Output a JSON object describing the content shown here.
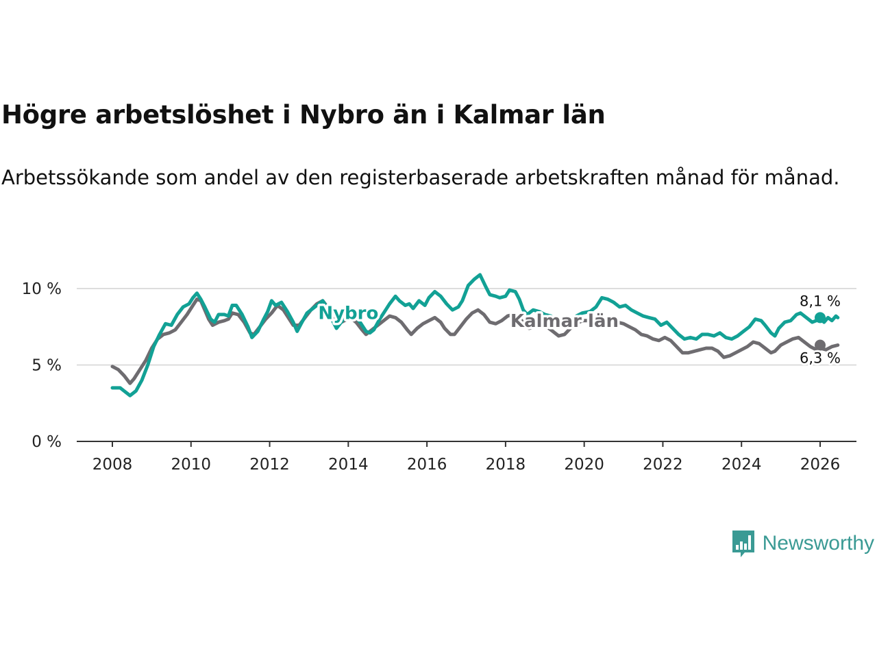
{
  "header": {
    "title": "Högre arbetslöshet i Nybro än i Kalmar län",
    "subtitle": "Arbetssökande som andel av den registerbaserade arbetskraften månad för månad."
  },
  "colors": {
    "nybro": "#12a195",
    "kalmar": "#6e6c70",
    "grid": "#dddddd",
    "axis": "#333333"
  },
  "brand": {
    "name": "Newsworthy",
    "icon": "bar-chart-speech-bubble-icon"
  },
  "chart_data": {
    "type": "line",
    "title": "Högre arbetslöshet i Nybro än i Kalmar län",
    "xlabel": "",
    "ylabel": "",
    "xlim": [
      2008,
      2026
    ],
    "ylim": [
      0,
      10
    ],
    "x_ticks": [
      2008,
      2010,
      2012,
      2014,
      2016,
      2018,
      2020,
      2022,
      2024,
      2026
    ],
    "x_tick_labels": [
      "2008",
      "2010",
      "2012",
      "2014",
      "2016",
      "2018",
      "2020",
      "2022",
      "2024",
      "2026"
    ],
    "y_ticks": [
      0,
      5,
      10
    ],
    "y_tick_labels": [
      "0 %",
      "5 %",
      "10 %"
    ],
    "grid": true,
    "series": [
      {
        "name": "Nybro",
        "color": "#12a195",
        "end_label": "8,1 %",
        "label_at": [
          2014.0,
          8.4
        ],
        "points": [
          [
            2008.0,
            3.5
          ],
          [
            2008.2,
            3.5
          ],
          [
            2008.3,
            3.3
          ],
          [
            2008.45,
            3.0
          ],
          [
            2008.6,
            3.3
          ],
          [
            2008.75,
            4.0
          ],
          [
            2008.9,
            5.0
          ],
          [
            2009.05,
            6.2
          ],
          [
            2009.2,
            7.0
          ],
          [
            2009.35,
            7.7
          ],
          [
            2009.5,
            7.6
          ],
          [
            2009.65,
            8.3
          ],
          [
            2009.8,
            8.8
          ],
          [
            2009.95,
            9.0
          ],
          [
            2010.05,
            9.4
          ],
          [
            2010.15,
            9.7
          ],
          [
            2010.25,
            9.3
          ],
          [
            2010.35,
            8.8
          ],
          [
            2010.5,
            8.0
          ],
          [
            2010.6,
            7.8
          ],
          [
            2010.7,
            8.3
          ],
          [
            2010.85,
            8.3
          ],
          [
            2010.95,
            8.2
          ],
          [
            2011.05,
            8.9
          ],
          [
            2011.15,
            8.9
          ],
          [
            2011.3,
            8.3
          ],
          [
            2011.45,
            7.5
          ],
          [
            2011.55,
            6.8
          ],
          [
            2011.7,
            7.2
          ],
          [
            2011.85,
            8.0
          ],
          [
            2011.95,
            8.5
          ],
          [
            2012.05,
            9.2
          ],
          [
            2012.15,
            8.9
          ],
          [
            2012.3,
            9.1
          ],
          [
            2012.45,
            8.5
          ],
          [
            2012.6,
            7.8
          ],
          [
            2012.7,
            7.2
          ],
          [
            2012.8,
            7.7
          ],
          [
            2012.95,
            8.4
          ],
          [
            2013.1,
            8.7
          ],
          [
            2013.25,
            9.0
          ],
          [
            2013.35,
            9.2
          ],
          [
            2013.5,
            8.6
          ],
          [
            2013.6,
            7.9
          ],
          [
            2013.7,
            7.4
          ],
          [
            2013.85,
            7.9
          ],
          [
            2014.0,
            8.4
          ],
          [
            2014.15,
            8.3
          ],
          [
            2014.3,
            7.8
          ],
          [
            2014.45,
            7.2
          ],
          [
            2014.55,
            7.1
          ],
          [
            2014.65,
            7.3
          ],
          [
            2014.8,
            8.0
          ],
          [
            2014.95,
            8.6
          ],
          [
            2015.05,
            9.0
          ],
          [
            2015.2,
            9.5
          ],
          [
            2015.3,
            9.2
          ],
          [
            2015.45,
            8.9
          ],
          [
            2015.55,
            9.0
          ],
          [
            2015.65,
            8.7
          ],
          [
            2015.8,
            9.2
          ],
          [
            2015.95,
            8.9
          ],
          [
            2016.05,
            9.4
          ],
          [
            2016.2,
            9.8
          ],
          [
            2016.35,
            9.5
          ],
          [
            2016.5,
            9.0
          ],
          [
            2016.65,
            8.6
          ],
          [
            2016.8,
            8.8
          ],
          [
            2016.9,
            9.2
          ],
          [
            2017.05,
            10.2
          ],
          [
            2017.2,
            10.6
          ],
          [
            2017.35,
            10.9
          ],
          [
            2017.5,
            10.1
          ],
          [
            2017.6,
            9.6
          ],
          [
            2017.75,
            9.5
          ],
          [
            2017.85,
            9.4
          ],
          [
            2018.0,
            9.5
          ],
          [
            2018.1,
            9.9
          ],
          [
            2018.25,
            9.8
          ],
          [
            2018.35,
            9.3
          ],
          [
            2018.45,
            8.6
          ],
          [
            2018.55,
            8.3
          ],
          [
            2018.7,
            8.6
          ],
          [
            2018.85,
            8.5
          ],
          [
            2019.0,
            8.3
          ],
          [
            2019.15,
            8.2
          ],
          [
            2019.3,
            7.8
          ],
          [
            2019.45,
            7.6
          ],
          [
            2019.6,
            7.9
          ],
          [
            2019.8,
            8.2
          ],
          [
            2019.95,
            8.4
          ],
          [
            2020.15,
            8.5
          ],
          [
            2020.3,
            8.8
          ],
          [
            2020.45,
            9.4
          ],
          [
            2020.6,
            9.3
          ],
          [
            2020.75,
            9.1
          ],
          [
            2020.9,
            8.8
          ],
          [
            2021.05,
            8.9
          ],
          [
            2021.2,
            8.6
          ],
          [
            2021.35,
            8.4
          ],
          [
            2021.5,
            8.2
          ],
          [
            2021.65,
            8.1
          ],
          [
            2021.8,
            8.0
          ],
          [
            2021.95,
            7.6
          ],
          [
            2022.1,
            7.8
          ],
          [
            2022.25,
            7.4
          ],
          [
            2022.4,
            7.0
          ],
          [
            2022.55,
            6.7
          ],
          [
            2022.7,
            6.8
          ],
          [
            2022.85,
            6.7
          ],
          [
            2023.0,
            7.0
          ],
          [
            2023.15,
            7.0
          ],
          [
            2023.3,
            6.9
          ],
          [
            2023.45,
            7.1
          ],
          [
            2023.6,
            6.8
          ],
          [
            2023.75,
            6.7
          ],
          [
            2023.9,
            6.9
          ],
          [
            2024.05,
            7.2
          ],
          [
            2024.2,
            7.5
          ],
          [
            2024.35,
            8.0
          ],
          [
            2024.5,
            7.9
          ],
          [
            2024.6,
            7.6
          ],
          [
            2024.75,
            7.1
          ],
          [
            2024.85,
            6.9
          ],
          [
            2024.95,
            7.4
          ],
          [
            2025.1,
            7.8
          ],
          [
            2025.25,
            7.9
          ],
          [
            2025.4,
            8.3
          ],
          [
            2025.5,
            8.4
          ],
          [
            2025.65,
            8.1
          ],
          [
            2025.8,
            7.8
          ],
          [
            2025.9,
            7.9
          ],
          [
            2026.0,
            8.1
          ],
          [
            2026.1,
            7.8
          ],
          [
            2026.2,
            8.1
          ],
          [
            2026.3,
            7.9
          ],
          [
            2026.4,
            8.2
          ],
          [
            2026.45,
            8.1
          ]
        ]
      },
      {
        "name": "Kalmar län",
        "color": "#6e6c70",
        "end_label": "6,3 %",
        "label_at": [
          2019.5,
          7.9
        ],
        "points": [
          [
            2008.0,
            4.9
          ],
          [
            2008.15,
            4.7
          ],
          [
            2008.3,
            4.3
          ],
          [
            2008.45,
            3.8
          ],
          [
            2008.55,
            4.1
          ],
          [
            2008.7,
            4.7
          ],
          [
            2008.85,
            5.3
          ],
          [
            2009.0,
            6.1
          ],
          [
            2009.15,
            6.7
          ],
          [
            2009.3,
            7.0
          ],
          [
            2009.45,
            7.1
          ],
          [
            2009.6,
            7.3
          ],
          [
            2009.75,
            7.8
          ],
          [
            2009.9,
            8.3
          ],
          [
            2010.05,
            8.9
          ],
          [
            2010.15,
            9.3
          ],
          [
            2010.25,
            9.2
          ],
          [
            2010.35,
            8.6
          ],
          [
            2010.45,
            8.0
          ],
          [
            2010.55,
            7.6
          ],
          [
            2010.7,
            7.8
          ],
          [
            2010.85,
            7.9
          ],
          [
            2010.95,
            8.0
          ],
          [
            2011.05,
            8.4
          ],
          [
            2011.2,
            8.3
          ],
          [
            2011.35,
            7.8
          ],
          [
            2011.5,
            7.1
          ],
          [
            2011.6,
            7.0
          ],
          [
            2011.75,
            7.5
          ],
          [
            2011.9,
            8.0
          ],
          [
            2012.05,
            8.4
          ],
          [
            2012.2,
            8.9
          ],
          [
            2012.35,
            8.6
          ],
          [
            2012.5,
            8.0
          ],
          [
            2012.6,
            7.6
          ],
          [
            2012.75,
            7.6
          ],
          [
            2012.9,
            8.1
          ],
          [
            2013.05,
            8.6
          ],
          [
            2013.2,
            9.0
          ],
          [
            2013.35,
            9.2
          ],
          [
            2013.5,
            8.7
          ],
          [
            2013.6,
            8.1
          ],
          [
            2013.75,
            7.7
          ],
          [
            2013.9,
            7.9
          ],
          [
            2014.05,
            8.1
          ],
          [
            2014.2,
            7.8
          ],
          [
            2014.35,
            7.3
          ],
          [
            2014.45,
            7.0
          ],
          [
            2014.6,
            7.3
          ],
          [
            2014.75,
            7.6
          ],
          [
            2014.9,
            7.9
          ],
          [
            2015.05,
            8.2
          ],
          [
            2015.2,
            8.1
          ],
          [
            2015.35,
            7.8
          ],
          [
            2015.5,
            7.3
          ],
          [
            2015.6,
            7.0
          ],
          [
            2015.75,
            7.4
          ],
          [
            2015.9,
            7.7
          ],
          [
            2016.05,
            7.9
          ],
          [
            2016.2,
            8.1
          ],
          [
            2016.35,
            7.8
          ],
          [
            2016.45,
            7.4
          ],
          [
            2016.6,
            7.0
          ],
          [
            2016.7,
            7.0
          ],
          [
            2016.85,
            7.5
          ],
          [
            2017.0,
            8.0
          ],
          [
            2017.15,
            8.4
          ],
          [
            2017.3,
            8.6
          ],
          [
            2017.45,
            8.3
          ],
          [
            2017.6,
            7.8
          ],
          [
            2017.75,
            7.7
          ],
          [
            2017.9,
            7.9
          ],
          [
            2018.05,
            8.2
          ],
          [
            2018.2,
            8.3
          ],
          [
            2018.35,
            8.1
          ],
          [
            2018.5,
            7.6
          ],
          [
            2018.6,
            7.4
          ],
          [
            2018.75,
            7.5
          ],
          [
            2018.9,
            7.6
          ],
          [
            2019.05,
            7.5
          ],
          [
            2019.2,
            7.2
          ],
          [
            2019.35,
            6.9
          ],
          [
            2019.5,
            7.0
          ],
          [
            2019.65,
            7.4
          ],
          [
            2019.8,
            7.7
          ],
          [
            2019.95,
            7.9
          ],
          [
            2020.1,
            7.9
          ],
          [
            2020.25,
            7.7
          ],
          [
            2020.4,
            7.8
          ],
          [
            2020.55,
            7.9
          ],
          [
            2020.7,
            7.9
          ],
          [
            2020.85,
            7.8
          ],
          [
            2021.0,
            7.7
          ],
          [
            2021.15,
            7.5
          ],
          [
            2021.3,
            7.3
          ],
          [
            2021.45,
            7.0
          ],
          [
            2021.6,
            6.9
          ],
          [
            2021.75,
            6.7
          ],
          [
            2021.9,
            6.6
          ],
          [
            2022.05,
            6.8
          ],
          [
            2022.2,
            6.6
          ],
          [
            2022.35,
            6.2
          ],
          [
            2022.5,
            5.8
          ],
          [
            2022.65,
            5.8
          ],
          [
            2022.8,
            5.9
          ],
          [
            2022.95,
            6.0
          ],
          [
            2023.1,
            6.1
          ],
          [
            2023.25,
            6.1
          ],
          [
            2023.4,
            5.9
          ],
          [
            2023.55,
            5.5
          ],
          [
            2023.7,
            5.6
          ],
          [
            2023.85,
            5.8
          ],
          [
            2024.0,
            6.0
          ],
          [
            2024.15,
            6.2
          ],
          [
            2024.3,
            6.5
          ],
          [
            2024.45,
            6.4
          ],
          [
            2024.6,
            6.1
          ],
          [
            2024.75,
            5.8
          ],
          [
            2024.85,
            5.9
          ],
          [
            2025.0,
            6.3
          ],
          [
            2025.15,
            6.5
          ],
          [
            2025.3,
            6.7
          ],
          [
            2025.45,
            6.8
          ],
          [
            2025.6,
            6.5
          ],
          [
            2025.75,
            6.2
          ],
          [
            2025.9,
            6.0
          ],
          [
            2026.0,
            6.1
          ],
          [
            2026.15,
            6.0
          ],
          [
            2026.3,
            6.2
          ],
          [
            2026.45,
            6.3
          ]
        ]
      }
    ]
  }
}
